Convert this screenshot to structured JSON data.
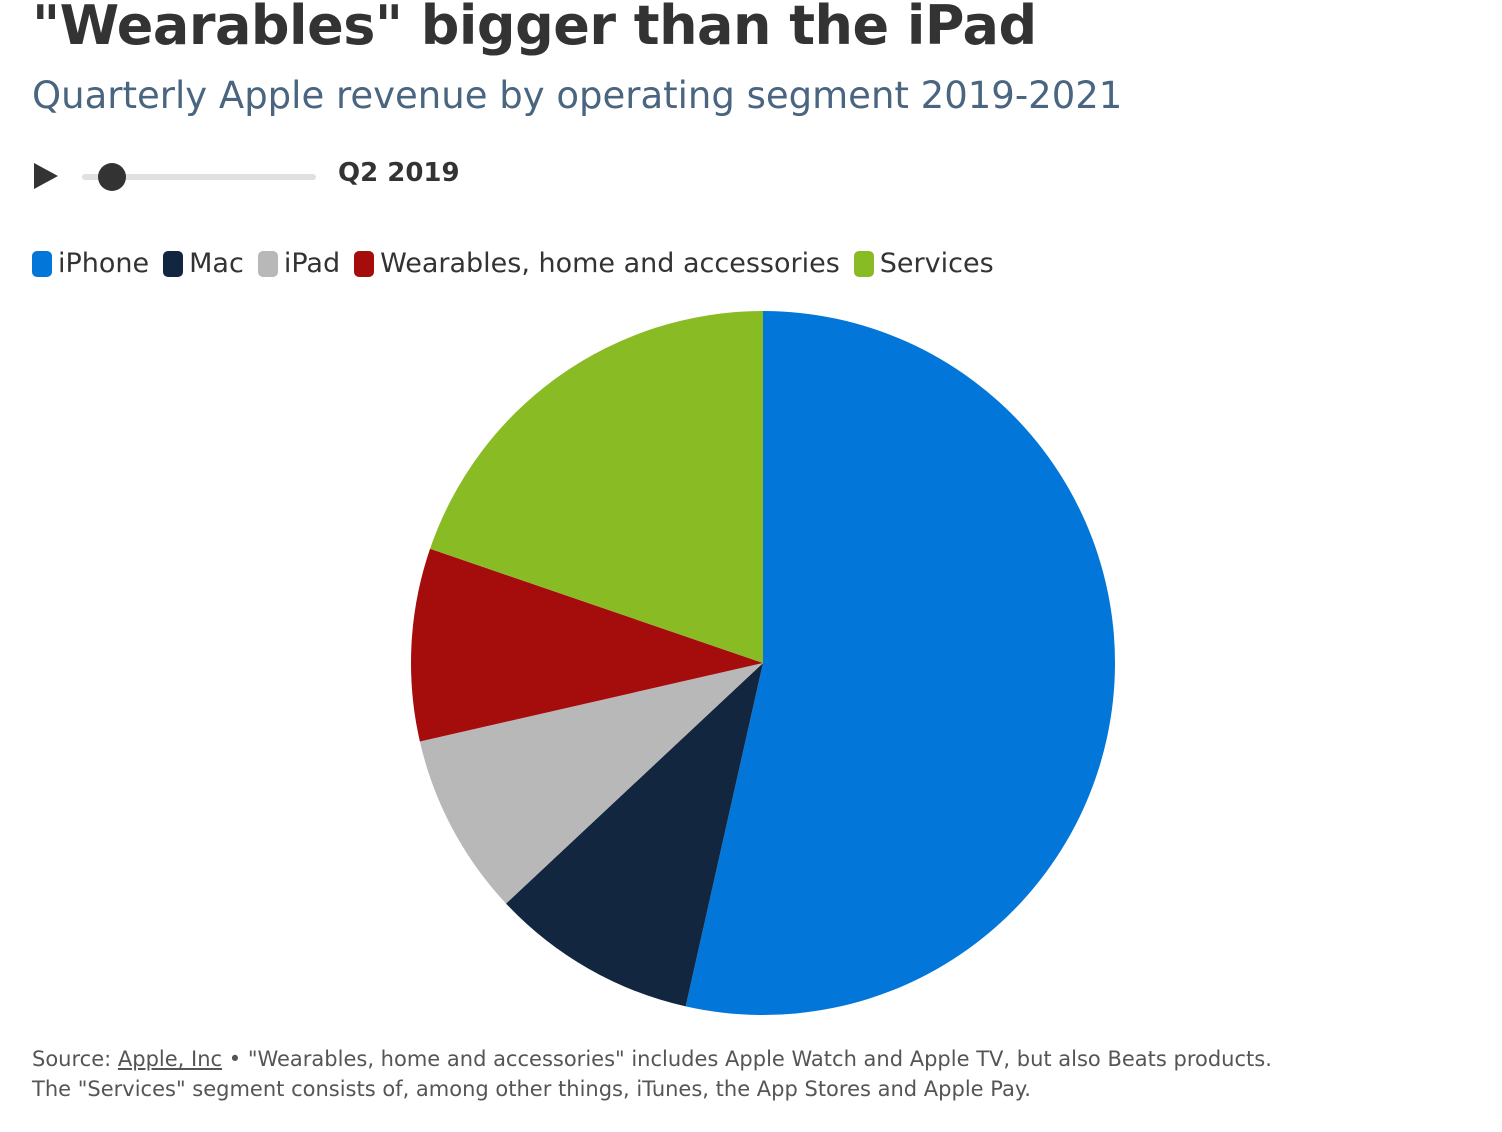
{
  "title": "\"Wearables\" bigger than the iPad",
  "subtitle": "Quarterly Apple revenue by operating segment 2019-2021",
  "controls": {
    "play_icon": "play-icon",
    "period_label": "Q2 2019",
    "slider_progress": 0.13
  },
  "chart_data": {
    "type": "pie",
    "title": "\"Wearables\" bigger than the iPad",
    "period": "Q2 2019",
    "legend_placement": "top-left",
    "categories": [
      "iPhone",
      "Mac",
      "iPad",
      "Wearables, home and accessories",
      "Services"
    ],
    "values": [
      31.05,
      5.51,
      4.87,
      5.13,
      11.45
    ],
    "colors": [
      "#0277d9",
      "#12263f",
      "#b8b8b8",
      "#a50d0c",
      "#89bb24"
    ]
  },
  "footer": {
    "source_prefix": "Source: ",
    "source_link": "Apple, Inc",
    "note1": " • \"Wearables, home and accessories\" includes Apple Watch and Apple TV, but also Beats products.",
    "note2": "The \"Services\" segment consists of, among other things, iTunes, the App Stores and Apple Pay."
  }
}
